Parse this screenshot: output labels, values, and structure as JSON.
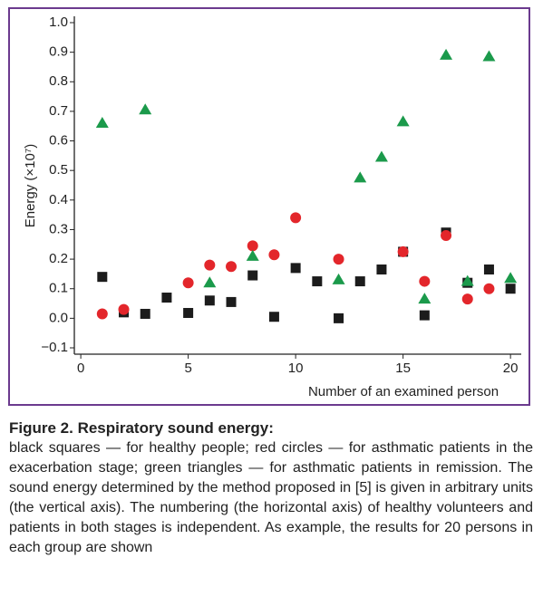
{
  "chart_data": {
    "type": "scatter",
    "y_label": "Energy (×10⁷)",
    "x_label": "Number of an examined person",
    "xlim": [
      -0.3,
      20.5
    ],
    "ylim": [
      -0.1,
      1.0
    ],
    "xticks": [
      0,
      5,
      10,
      15,
      20
    ],
    "yticks": [
      {
        "value": 1,
        "label": "1.0"
      },
      0.9,
      0.8,
      0.7,
      0.6,
      0.5,
      0.4,
      0.3,
      0.2,
      0.1,
      {
        "value": 0,
        "label": "0.0"
      },
      {
        "value": -0.1,
        "label": "−0.1"
      }
    ],
    "series": [
      {
        "marker": "square",
        "color": "#1c1c1c",
        "x": [
          1,
          2,
          3,
          4,
          5,
          6,
          7,
          8,
          9,
          10,
          11,
          12,
          13,
          14,
          15,
          16,
          17,
          18,
          19,
          20
        ],
        "values": [
          0.14,
          0.02,
          0.015,
          0.07,
          0.018,
          0.06,
          0.055,
          0.145,
          0.005,
          0.17,
          0.125,
          0.0,
          0.125,
          0.165,
          0.225,
          0.01,
          0.29,
          0.12,
          0.165,
          0.1
        ]
      },
      {
        "marker": "circle",
        "color": "#e3262b",
        "x": [
          1,
          2,
          5,
          6,
          7,
          8,
          9,
          10,
          12,
          15,
          16,
          17,
          18,
          19
        ],
        "values": [
          0.015,
          0.03,
          0.12,
          0.18,
          0.175,
          0.245,
          0.215,
          0.34,
          0.2,
          0.225,
          0.125,
          0.28,
          0.065,
          0.1
        ]
      },
      {
        "marker": "triangle",
        "color": "#1b9a4b",
        "x": [
          1,
          3,
          6,
          8,
          12,
          13,
          14,
          15,
          16,
          17,
          18,
          19,
          20
        ],
        "values": [
          0.66,
          0.705,
          0.12,
          0.21,
          0.13,
          0.475,
          0.545,
          0.665,
          0.065,
          0.89,
          0.125,
          0.885,
          0.135
        ]
      }
    ]
  },
  "caption": {
    "title": "Figure 2. Respiratory sound energy:",
    "text": "black squares — for healthy people; red circles — for asthmatic patients in the exacerbation stage; green triangles — for asthmatic patients in remission. The sound energy determined by the method proposed in [5] is given in arbitrary units (the vertical axis). The numbering (the horizontal axis) of healthy volunteers and patients in both stages is independent. As example, the results for 20 persons in each group are shown"
  }
}
